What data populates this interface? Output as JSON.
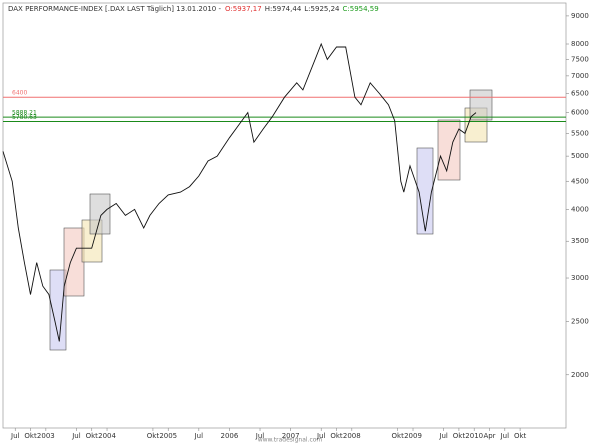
{
  "chart_data": {
    "type": "line",
    "title": "DAX PERFORMANCE-INDEX [.DAX LAST Täglich] 13.01.2010 -",
    "quote": [
      {
        "text": "O:5937,17",
        "color": "#e03030"
      },
      {
        "text": "H:5974,44",
        "color": "#333333"
      },
      {
        "text": "L:5925,24",
        "color": "#333333"
      },
      {
        "text": "C:5954,59",
        "color": "#1a9a1a"
      }
    ],
    "watermark": "www.tradesignal.com",
    "log_y": true,
    "grid": false,
    "xlim": [
      2002.3,
      2011.5
    ],
    "ylim": [
      1600,
      9500
    ],
    "yticks": [
      2000,
      2500,
      3000,
      3500,
      4000,
      4500,
      5000,
      5500,
      6000,
      6500,
      7000,
      7500,
      8000,
      9000
    ],
    "xticks": [
      {
        "value": 2002.5,
        "label": "Jul"
      },
      {
        "value": 2002.75,
        "label": "Okt"
      },
      2003,
      {
        "value": 2003.5,
        "label": "Jul"
      },
      {
        "value": 2003.75,
        "label": "Okt"
      },
      2004,
      {
        "value": 2004.75,
        "label": "Okt"
      },
      2005,
      {
        "value": 2005.5,
        "label": "Jul"
      },
      2006,
      {
        "value": 2006.5,
        "label": "Jul"
      },
      2007,
      {
        "value": 2007.5,
        "label": "Jul"
      },
      {
        "value": 2007.75,
        "label": "Okt"
      },
      2008,
      {
        "value": 2008.75,
        "label": "Okt"
      },
      2009,
      {
        "value": 2009.5,
        "label": "Jul"
      },
      {
        "value": 2009.75,
        "label": "Okt"
      },
      2010,
      {
        "value": 2010.25,
        "label": "Apr"
      },
      {
        "value": 2010.5,
        "label": "Jul"
      },
      {
        "value": 2010.75,
        "label": "Okt"
      }
    ],
    "levels": [
      {
        "value": 6400,
        "color": "#f07070"
      },
      {
        "value": 5888.21,
        "color": "#1a8a1a"
      },
      {
        "value": 5780.63,
        "color": "#1a8a1a"
      }
    ],
    "series": [
      {
        "name": "DAX",
        "color": "#111111",
        "x": [
          2002.3,
          2002.45,
          2002.55,
          2002.65,
          2002.75,
          2002.85,
          2002.95,
          2003.05,
          2003.15,
          2003.22,
          2003.3,
          2003.4,
          2003.5,
          2003.6,
          2003.75,
          2003.9,
          2004.0,
          2004.15,
          2004.3,
          2004.45,
          2004.6,
          2004.7,
          2004.85,
          2005.0,
          2005.2,
          2005.35,
          2005.5,
          2005.65,
          2005.8,
          2006.0,
          2006.3,
          2006.4,
          2006.55,
          2006.7,
          2006.9,
          2007.1,
          2007.2,
          2007.4,
          2007.5,
          2007.6,
          2007.75,
          2007.9,
          2008.05,
          2008.15,
          2008.3,
          2008.45,
          2008.6,
          2008.7,
          2008.8,
          2008.85,
          2008.95,
          2009.1,
          2009.2,
          2009.3,
          2009.45,
          2009.55,
          2009.65,
          2009.75,
          2009.85,
          2009.95,
          2010.03
        ],
        "values": [
          5100,
          4500,
          3700,
          3200,
          2800,
          3200,
          2900,
          2800,
          2500,
          2300,
          2900,
          3200,
          3400,
          3400,
          3400,
          3900,
          4000,
          4100,
          3900,
          4000,
          3700,
          3900,
          4100,
          4250,
          4300,
          4400,
          4600,
          4900,
          5000,
          5400,
          6000,
          5300,
          5600,
          5900,
          6400,
          6800,
          6600,
          7500,
          8000,
          7500,
          7900,
          7900,
          6400,
          6200,
          6800,
          6500,
          6200,
          5800,
          4500,
          4300,
          4800,
          4300,
          3650,
          4300,
          5000,
          4700,
          5300,
          5600,
          5500,
          5900,
          6000
        ]
      }
    ]
  }
}
